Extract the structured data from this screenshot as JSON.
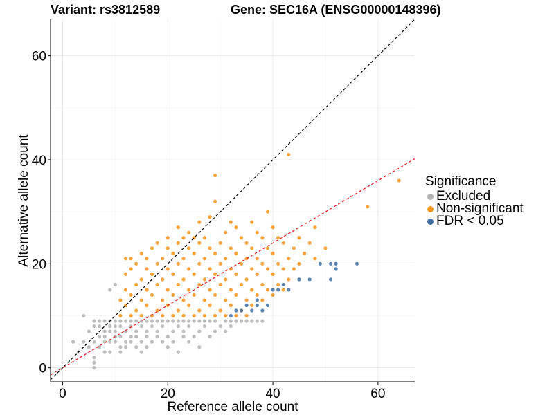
{
  "header": {
    "variant_label": "Variant: rs3812589",
    "gene_label": "Gene: SEC16A (ENSG00000148396)"
  },
  "legend": {
    "title": "Significance",
    "items": [
      {
        "label": "Excluded",
        "color": "#b3b3b3"
      },
      {
        "label": "Non-significant",
        "color": "#f7941d"
      },
      {
        "label": "FDR < 0.05",
        "color": "#3f6fa3"
      }
    ]
  },
  "chart_data": {
    "type": "scatter",
    "title": "Variant: rs3812589    Gene: SEC16A (ENSG00000148396)",
    "xlabel": "Reference allele count",
    "ylabel": "Alternative allele count",
    "xlim": [
      -2.3,
      67
    ],
    "ylim": [
      -2.7,
      67
    ],
    "xticks": [
      0,
      20,
      40,
      60
    ],
    "yticks": [
      0,
      20,
      40,
      60
    ],
    "grid": true,
    "legend_position": "right",
    "reference_lines": [
      {
        "name": "y = x",
        "slope": 1,
        "intercept": 0,
        "color": "#000000",
        "style": "dashed"
      },
      {
        "name": "fit",
        "slope": 0.6,
        "intercept": 0,
        "color": "#e41a1c",
        "style": "dashed"
      }
    ],
    "series": [
      {
        "name": "Excluded",
        "color": "#b3b3b3",
        "points": [
          [
            2,
            5
          ],
          [
            3,
            3
          ],
          [
            4,
            10
          ],
          [
            4,
            5
          ],
          [
            5,
            7
          ],
          [
            5,
            4
          ],
          [
            6,
            0
          ],
          [
            6,
            1
          ],
          [
            6,
            2
          ],
          [
            6,
            5
          ],
          [
            6,
            8
          ],
          [
            6,
            9
          ],
          [
            7,
            6
          ],
          [
            7,
            9
          ],
          [
            7,
            4
          ],
          [
            7,
            8
          ],
          [
            8,
            3
          ],
          [
            8,
            5
          ],
          [
            8,
            7
          ],
          [
            8,
            9
          ],
          [
            8,
            6
          ],
          [
            9,
            15
          ],
          [
            9,
            8
          ],
          [
            9,
            5
          ],
          [
            9,
            7
          ],
          [
            9,
            9
          ],
          [
            9,
            3
          ],
          [
            10,
            16
          ],
          [
            10,
            9
          ],
          [
            10,
            8
          ],
          [
            10,
            6
          ],
          [
            10,
            5
          ],
          [
            10,
            7
          ],
          [
            11,
            4
          ],
          [
            11,
            9
          ],
          [
            11,
            6
          ],
          [
            11,
            8
          ],
          [
            11,
            3
          ],
          [
            12,
            5
          ],
          [
            12,
            7
          ],
          [
            12,
            9
          ],
          [
            12,
            4
          ],
          [
            13,
            6
          ],
          [
            13,
            8
          ],
          [
            13,
            9
          ],
          [
            13,
            5
          ],
          [
            14,
            7
          ],
          [
            14,
            4
          ],
          [
            14,
            9
          ],
          [
            14,
            6
          ],
          [
            15,
            8
          ],
          [
            15,
            5
          ],
          [
            15,
            9
          ],
          [
            15,
            3
          ],
          [
            16,
            7
          ],
          [
            16,
            9
          ],
          [
            16,
            6
          ],
          [
            16,
            4
          ],
          [
            17,
            8
          ],
          [
            17,
            5
          ],
          [
            17,
            9
          ],
          [
            18,
            6
          ],
          [
            18,
            9
          ],
          [
            18,
            7
          ],
          [
            19,
            5
          ],
          [
            19,
            8
          ],
          [
            19,
            9
          ],
          [
            20,
            6
          ],
          [
            20,
            9
          ],
          [
            20,
            4
          ],
          [
            21,
            7
          ],
          [
            21,
            9
          ],
          [
            21,
            5
          ],
          [
            22,
            8
          ],
          [
            22,
            3
          ],
          [
            22,
            9
          ],
          [
            23,
            6
          ],
          [
            23,
            9
          ],
          [
            23,
            7
          ],
          [
            24,
            5
          ],
          [
            24,
            9
          ],
          [
            24,
            8
          ],
          [
            25,
            9
          ],
          [
            25,
            6
          ],
          [
            26,
            7
          ],
          [
            26,
            9
          ],
          [
            26,
            4
          ],
          [
            27,
            8
          ],
          [
            27,
            9
          ],
          [
            28,
            6
          ],
          [
            28,
            9
          ],
          [
            29,
            7
          ],
          [
            29,
            9
          ],
          [
            30,
            8
          ],
          [
            31,
            9
          ],
          [
            31,
            7
          ],
          [
            32,
            9
          ],
          [
            32,
            8
          ],
          [
            33,
            9
          ],
          [
            34,
            9
          ],
          [
            35,
            9
          ],
          [
            36,
            9
          ],
          [
            37,
            9
          ],
          [
            38,
            9
          ]
        ]
      },
      {
        "name": "Non-significant",
        "color": "#f7941d",
        "points": [
          [
            11,
            10
          ],
          [
            11,
            13
          ],
          [
            12,
            12
          ],
          [
            12,
            15
          ],
          [
            12,
            18
          ],
          [
            12,
            21
          ],
          [
            13,
            10
          ],
          [
            13,
            14
          ],
          [
            13,
            19
          ],
          [
            13,
            21
          ],
          [
            14,
            11
          ],
          [
            14,
            16
          ],
          [
            14,
            20
          ],
          [
            15,
            10
          ],
          [
            15,
            13
          ],
          [
            15,
            17
          ],
          [
            15,
            22
          ],
          [
            16,
            12
          ],
          [
            16,
            15
          ],
          [
            16,
            19
          ],
          [
            16,
            21
          ],
          [
            17,
            10
          ],
          [
            17,
            14
          ],
          [
            17,
            18
          ],
          [
            17,
            23
          ],
          [
            18,
            11
          ],
          [
            18,
            16
          ],
          [
            18,
            20
          ],
          [
            18,
            24
          ],
          [
            19,
            10
          ],
          [
            19,
            13
          ],
          [
            19,
            17
          ],
          [
            19,
            21
          ],
          [
            20,
            12
          ],
          [
            20,
            15
          ],
          [
            20,
            19
          ],
          [
            20,
            23
          ],
          [
            20,
            25
          ],
          [
            21,
            10
          ],
          [
            21,
            14
          ],
          [
            21,
            18
          ],
          [
            21,
            22
          ],
          [
            22,
            11
          ],
          [
            22,
            16
          ],
          [
            22,
            20
          ],
          [
            22,
            24
          ],
          [
            22,
            27
          ],
          [
            23,
            10
          ],
          [
            23,
            13
          ],
          [
            23,
            17
          ],
          [
            23,
            21
          ],
          [
            23,
            25
          ],
          [
            24,
            12
          ],
          [
            24,
            15
          ],
          [
            24,
            19
          ],
          [
            24,
            23
          ],
          [
            24,
            26
          ],
          [
            25,
            10
          ],
          [
            25,
            14
          ],
          [
            25,
            18
          ],
          [
            25,
            22
          ],
          [
            25,
            25
          ],
          [
            26,
            11
          ],
          [
            26,
            16
          ],
          [
            26,
            20
          ],
          [
            26,
            24
          ],
          [
            26,
            28
          ],
          [
            27,
            10
          ],
          [
            27,
            13
          ],
          [
            27,
            17
          ],
          [
            27,
            21
          ],
          [
            27,
            25
          ],
          [
            28,
            12
          ],
          [
            28,
            15
          ],
          [
            28,
            19
          ],
          [
            28,
            23
          ],
          [
            28,
            29
          ],
          [
            29,
            10
          ],
          [
            29,
            14
          ],
          [
            29,
            18
          ],
          [
            29,
            22
          ],
          [
            29,
            37
          ],
          [
            29,
            32
          ],
          [
            30,
            11
          ],
          [
            30,
            16
          ],
          [
            30,
            20
          ],
          [
            30,
            24
          ],
          [
            31,
            10
          ],
          [
            31,
            13
          ],
          [
            31,
            17
          ],
          [
            31,
            21
          ],
          [
            31,
            26
          ],
          [
            32,
            12
          ],
          [
            32,
            15
          ],
          [
            32,
            19
          ],
          [
            32,
            23
          ],
          [
            32,
            28
          ],
          [
            33,
            10
          ],
          [
            33,
            14
          ],
          [
            33,
            18
          ],
          [
            33,
            22
          ],
          [
            33,
            27
          ],
          [
            34,
            11
          ],
          [
            34,
            16
          ],
          [
            34,
            20
          ],
          [
            34,
            25
          ],
          [
            35,
            10
          ],
          [
            35,
            13
          ],
          [
            35,
            17
          ],
          [
            35,
            21
          ],
          [
            35,
            24
          ],
          [
            36,
            12
          ],
          [
            36,
            15
          ],
          [
            36,
            19
          ],
          [
            36,
            23
          ],
          [
            36,
            28
          ],
          [
            37,
            14
          ],
          [
            37,
            18
          ],
          [
            37,
            21
          ],
          [
            37,
            26
          ],
          [
            38,
            13
          ],
          [
            38,
            16
          ],
          [
            38,
            20
          ],
          [
            38,
            25
          ],
          [
            39,
            15
          ],
          [
            39,
            19
          ],
          [
            39,
            23
          ],
          [
            39,
            30
          ],
          [
            40,
            14
          ],
          [
            40,
            18
          ],
          [
            40,
            22
          ],
          [
            40,
            27
          ],
          [
            41,
            16
          ],
          [
            41,
            20
          ],
          [
            41,
            25
          ],
          [
            42,
            15
          ],
          [
            42,
            19
          ],
          [
            42,
            24
          ],
          [
            43,
            17
          ],
          [
            43,
            21
          ],
          [
            43,
            41
          ],
          [
            44,
            19
          ],
          [
            44,
            23
          ],
          [
            45,
            20
          ],
          [
            45,
            25
          ],
          [
            46,
            22
          ],
          [
            47,
            24
          ],
          [
            48,
            27
          ],
          [
            48,
            21
          ],
          [
            50,
            23
          ],
          [
            58,
            31
          ],
          [
            64,
            36
          ]
        ]
      },
      {
        "name": "FDR < 0.05",
        "color": "#3f6fa3",
        "points": [
          [
            32,
            10
          ],
          [
            33,
            11
          ],
          [
            34,
            11
          ],
          [
            35,
            12
          ],
          [
            36,
            11
          ],
          [
            37,
            12
          ],
          [
            37,
            13
          ],
          [
            38,
            11
          ],
          [
            39,
            12
          ],
          [
            40,
            15
          ],
          [
            41,
            15
          ],
          [
            42,
            16
          ],
          [
            43,
            15
          ],
          [
            45,
            17
          ],
          [
            47,
            17
          ],
          [
            49,
            20
          ],
          [
            51,
            17
          ],
          [
            51,
            20
          ],
          [
            52,
            19
          ],
          [
            52,
            20
          ],
          [
            56,
            20
          ]
        ]
      }
    ]
  }
}
